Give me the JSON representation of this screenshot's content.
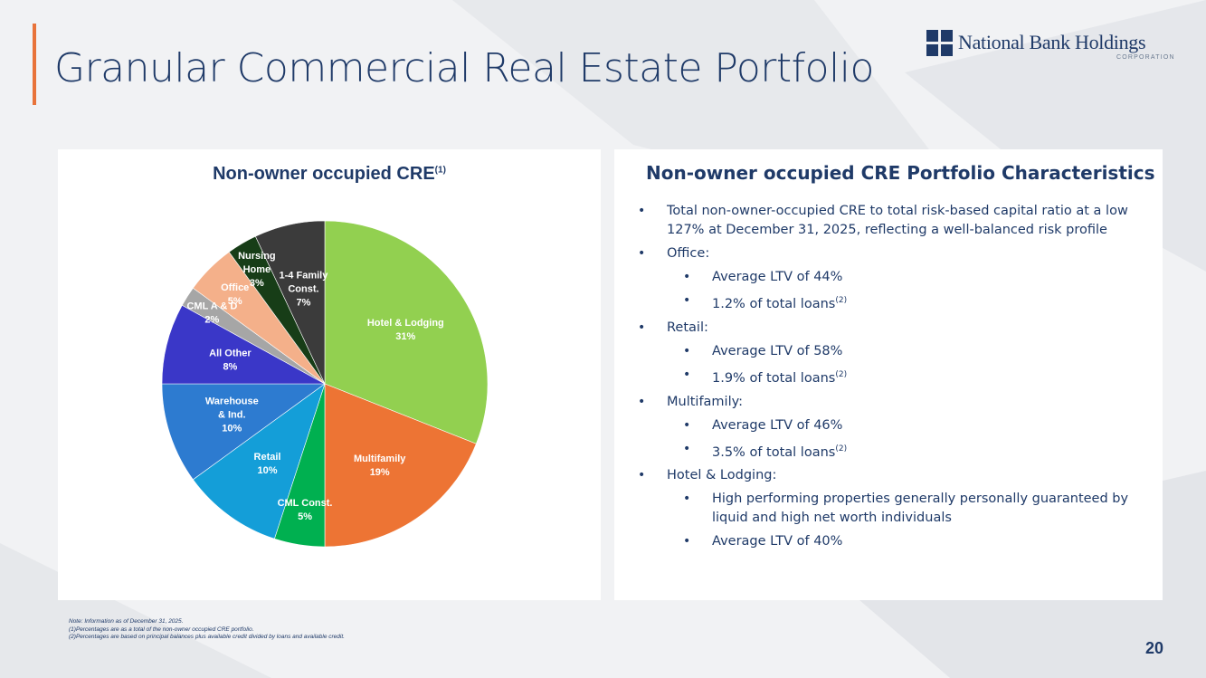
{
  "slide": {
    "title": "Granular Commercial Real Estate Portfolio",
    "page_number": "20",
    "accent_color": "#e8733a",
    "title_color": "#1f3a68"
  },
  "logo": {
    "name": "National Bank Holdings",
    "subtitle": "CORPORATION"
  },
  "chart_title": {
    "text": "Non-owner occupied CRE",
    "sup": "(1)"
  },
  "chart_data": {
    "type": "pie",
    "title": "Non-owner occupied CRE(1)",
    "slices": [
      {
        "label_lines": [
          "Hotel & Lodging"
        ],
        "value": 31,
        "pct": "31%",
        "color": "#92d050"
      },
      {
        "label_lines": [
          "Multifamily"
        ],
        "value": 19,
        "pct": "19%",
        "color": "#ed7434"
      },
      {
        "label_lines": [
          "CML Const."
        ],
        "value": 5,
        "pct": "5%",
        "color": "#00b050"
      },
      {
        "label_lines": [
          "Retail"
        ],
        "value": 10,
        "pct": "10%",
        "color": "#149ed8"
      },
      {
        "label_lines": [
          "Warehouse",
          "& Ind."
        ],
        "value": 10,
        "pct": "10%",
        "color": "#2d7bd0"
      },
      {
        "label_lines": [
          "All Other"
        ],
        "value": 8,
        "pct": "8%",
        "color": "#3a37c8"
      },
      {
        "label_lines": [
          "CML A & D"
        ],
        "value": 2,
        "pct": "2%",
        "color": "#a6a6a6"
      },
      {
        "label_lines": [
          "Office"
        ],
        "value": 5,
        "pct": "5%",
        "color": "#f4b08a"
      },
      {
        "label_lines": [
          "Nursing",
          "Home"
        ],
        "value": 3,
        "pct": "3%",
        "color": "#173d17"
      },
      {
        "label_lines": [
          "1-4 Family",
          "Const."
        ],
        "value": 7,
        "pct": "7%",
        "color": "#3b3b3b"
      }
    ]
  },
  "characteristics": {
    "title": "Non-owner occupied CRE Portfolio Characteristics",
    "bullets": [
      {
        "level": 1,
        "text": "Total non-owner-occupied CRE to total risk-based capital ratio at a low 127% at December 31, 2025, reflecting a well-balanced risk profile",
        "sup": ""
      },
      {
        "level": 1,
        "text": "Office:",
        "sup": ""
      },
      {
        "level": 2,
        "text": "Average LTV of 44%",
        "sup": ""
      },
      {
        "level": 2,
        "text": "1.2% of total loans",
        "sup": "(2)"
      },
      {
        "level": 1,
        "text": "Retail:",
        "sup": ""
      },
      {
        "level": 2,
        "text": "Average LTV of 58%",
        "sup": ""
      },
      {
        "level": 2,
        "text": "1.9% of total loans",
        "sup": "(2)"
      },
      {
        "level": 1,
        "text": "Multifamily:",
        "sup": ""
      },
      {
        "level": 2,
        "text": "Average LTV of 46%",
        "sup": ""
      },
      {
        "level": 2,
        "text": "3.5% of total loans",
        "sup": "(2)"
      },
      {
        "level": 1,
        "text": "Hotel & Lodging:",
        "sup": ""
      },
      {
        "level": 2,
        "text": "High performing properties generally personally guaranteed by liquid and high net worth individuals",
        "sup": ""
      },
      {
        "level": 2,
        "text": "Average LTV of 40%",
        "sup": ""
      }
    ]
  },
  "footnotes": [
    "Note: Information as of December 31, 2025.",
    "(1)Percentages are as a total of the non-owner occupied CRE portfolio.",
    "(2)Percentages are based on principal balances plus available credit divided by loans and available credit."
  ]
}
